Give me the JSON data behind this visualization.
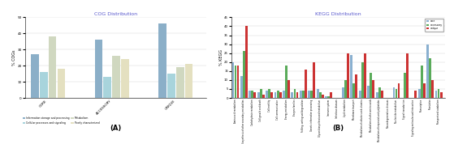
{
  "cog_title": "COG Distribution",
  "cog_ylabel": "% COGs",
  "cog_categories": [
    "CORE",
    "ACCESSORY",
    "UNIQUE"
  ],
  "cog_group_labels": [
    "Information storage and processing",
    "Cellular processes and signaling",
    "Metabolism",
    "Poorly characterized"
  ],
  "cog_group_colors": [
    "#8bafc8",
    "#a8d4dc",
    "#d0d8c0",
    "#e4e0c0"
  ],
  "cog_data_by_series": [
    [
      27,
      36,
      46
    ],
    [
      16,
      13,
      15
    ],
    [
      38,
      26,
      19
    ],
    [
      18,
      24,
      21
    ]
  ],
  "cog_ylim": [
    0,
    50
  ],
  "cog_yticks": [
    0,
    10,
    20,
    30,
    40,
    50
  ],
  "kegg_title": "KEGG Distribution",
  "kegg_ylabel": "% KEGG",
  "kegg_series_labels": [
    "core",
    "accessory",
    "unique"
  ],
  "kegg_series_colors": [
    "#8ab0d0",
    "#5aab5a",
    "#cc3333"
  ],
  "kegg_categories": [
    "Amino acid metabolism",
    "Biosynthesis of other secondary metabolites",
    "Carbohydrate metabolism",
    "Cell growth and death",
    "Cell motility",
    "Cell communication",
    "Energy metabolism",
    "Enzyme families",
    "Folding, sorting and degradation",
    "Genetic information processing",
    "Glycan biosynthesis and metabolism",
    "Immune system",
    "Infectious diseases",
    "Lipid metabolism",
    "Membrane transport",
    "Metabolism of cofactors and vitamins",
    "Metabolism of other amino acids",
    "Metabolism of terpenoids and polyketides",
    "Neurodegenerative diseases",
    "Nucleotide metabolism",
    "Signal transduction",
    "Signaling molecules and interaction",
    "Transcription",
    "Translation",
    "Transport and catabolism"
  ],
  "kegg_data": {
    "core": [
      20,
      12,
      4,
      3,
      4,
      3,
      4,
      3,
      4,
      4,
      5,
      1,
      0,
      6,
      24,
      4,
      7,
      3,
      0,
      6,
      0,
      0,
      5,
      30,
      4
    ],
    "accessory": [
      18,
      26,
      4,
      5,
      5,
      4,
      18,
      5,
      4,
      4,
      3,
      1,
      0,
      10,
      8,
      20,
      14,
      6,
      0,
      5,
      14,
      0,
      18,
      22,
      5
    ],
    "unique": [
      18,
      40,
      3,
      2,
      3,
      3,
      10,
      3,
      16,
      20,
      2,
      3,
      0,
      25,
      13,
      25,
      10,
      4,
      0,
      8,
      25,
      4,
      8,
      10,
      3
    ]
  },
  "kegg_ylim": [
    0,
    45
  ],
  "kegg_yticks": [
    0,
    5,
    10,
    15,
    20,
    25,
    30,
    35,
    40,
    45
  ],
  "label_A": "(A)",
  "label_B": "(B)"
}
